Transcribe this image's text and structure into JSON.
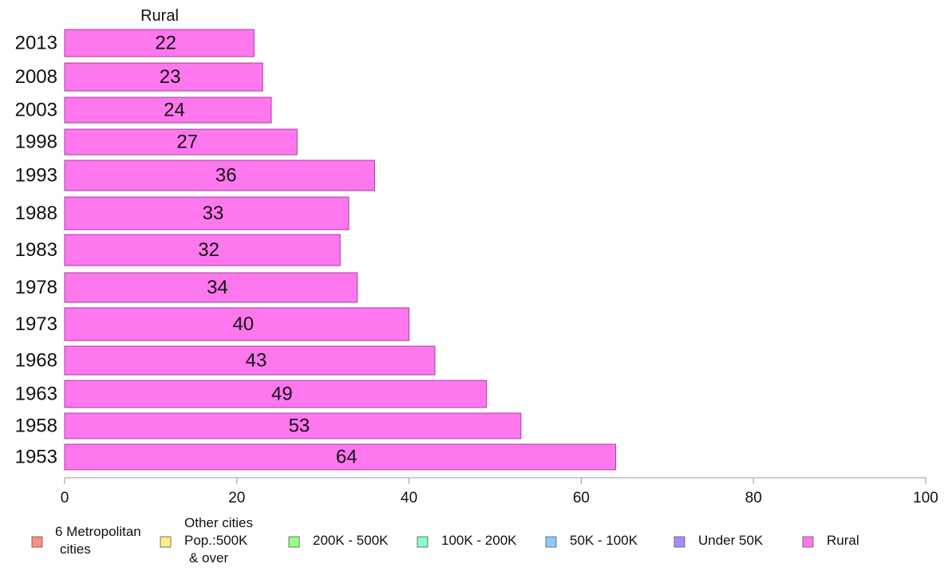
{
  "chart_data": {
    "type": "bar",
    "orientation": "horizontal",
    "panel_title": "Rural",
    "categories": [
      "2013",
      "2008",
      "2003",
      "1998",
      "1993",
      "1988",
      "1983",
      "1978",
      "1973",
      "1968",
      "1963",
      "1958",
      "1953"
    ],
    "values": [
      22,
      23,
      24,
      27,
      36,
      33,
      32,
      34,
      40,
      43,
      49,
      53,
      64
    ],
    "bar_color": "#ff77ee",
    "bar_edge_color": "#a23fa0",
    "xlim": [
      0,
      100
    ],
    "xticks": [
      0,
      20,
      40,
      60,
      80,
      100
    ],
    "grid": false,
    "legend_position": "bottom",
    "legend": [
      {
        "lines": [
          "6 Metropolitan",
          "cities"
        ],
        "color": "#ff8c80"
      },
      {
        "lines": [
          "Other cities",
          "Pop.:500K",
          "& over"
        ],
        "color": "#ffee88"
      },
      {
        "lines": [
          "200K - 500K"
        ],
        "color": "#99ff88"
      },
      {
        "lines": [
          "100K - 200K"
        ],
        "color": "#88ffcc"
      },
      {
        "lines": [
          "50K - 100K"
        ],
        "color": "#88ccff"
      },
      {
        "lines": [
          "Under 50K"
        ],
        "color": "#aa88ff"
      },
      {
        "lines": [
          "Rural"
        ],
        "color": "#ff77ee"
      }
    ]
  }
}
